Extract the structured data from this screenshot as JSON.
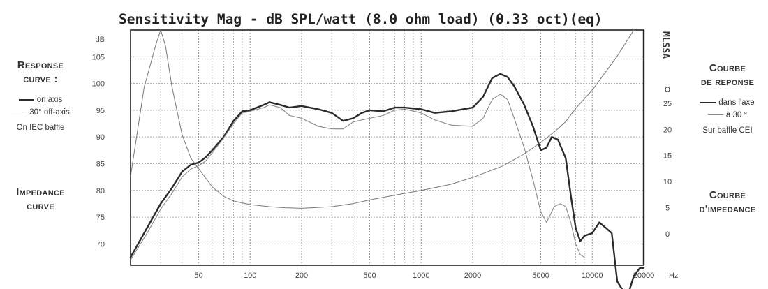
{
  "left_panel": {
    "response_heading_1": "Response",
    "response_heading_2": "curve :",
    "legend_on_axis": "on axis",
    "legend_off_axis": "30° off-axis",
    "baffle_note": "On IEC baffle",
    "impedance_heading_1": "Impedance",
    "impedance_heading_2": "curve"
  },
  "right_panel": {
    "response_heading_1": "Courbe",
    "response_heading_2": "de reponse",
    "legend_on_axis": "dans l'axe",
    "legend_off_axis": "à 30 °",
    "baffle_note": "Sur baffle CEI",
    "impedance_heading_1": "Courbe",
    "impedance_heading_2": "d'impedance"
  },
  "chart_data": {
    "type": "line",
    "title": "Sensitivity Mag - dB SPL/watt (8.0 ohm load) (0.33 oct)(eq)",
    "x_scale": "log",
    "x_range": [
      20,
      20000
    ],
    "x_unit": "Hz",
    "x_tick_labels": [
      50,
      100,
      200,
      500,
      1000,
      2000,
      5000,
      10000,
      20000
    ],
    "y_left": {
      "unit": "dB",
      "range": [
        66,
        110
      ],
      "ticks": [
        70,
        75,
        80,
        85,
        90,
        95,
        100,
        105
      ]
    },
    "y_right": {
      "unit": "Ω",
      "range": [
        -6,
        39
      ],
      "ticks": [
        0,
        5,
        10,
        15,
        20,
        25
      ]
    },
    "right_axis_label": "MLSSA",
    "grid": true,
    "series": [
      {
        "name": "on axis",
        "axis": "left",
        "color": "#2b2b2b",
        "points": [
          [
            20,
            67.5
          ],
          [
            25,
            73
          ],
          [
            30,
            77.5
          ],
          [
            35,
            80.5
          ],
          [
            40,
            83.5
          ],
          [
            45,
            84.8
          ],
          [
            50,
            85.2
          ],
          [
            55,
            86.2
          ],
          [
            60,
            87.5
          ],
          [
            70,
            90
          ],
          [
            80,
            93
          ],
          [
            90,
            94.8
          ],
          [
            100,
            95
          ],
          [
            120,
            96
          ],
          [
            130,
            96.5
          ],
          [
            150,
            96
          ],
          [
            170,
            95.5
          ],
          [
            200,
            95.8
          ],
          [
            250,
            95.2
          ],
          [
            300,
            94.5
          ],
          [
            350,
            93
          ],
          [
            400,
            93.5
          ],
          [
            450,
            94.5
          ],
          [
            500,
            95
          ],
          [
            600,
            94.8
          ],
          [
            700,
            95.5
          ],
          [
            800,
            95.5
          ],
          [
            1000,
            95.2
          ],
          [
            1200,
            94.5
          ],
          [
            1500,
            94.8
          ],
          [
            2000,
            95.5
          ],
          [
            2300,
            97.5
          ],
          [
            2600,
            101
          ],
          [
            2900,
            101.8
          ],
          [
            3200,
            101.2
          ],
          [
            3500,
            99.5
          ],
          [
            4000,
            96
          ],
          [
            4500,
            92
          ],
          [
            5000,
            87.5
          ],
          [
            5400,
            88
          ],
          [
            5800,
            90
          ],
          [
            6300,
            89.5
          ],
          [
            7000,
            86
          ],
          [
            7500,
            79
          ],
          [
            8000,
            73
          ],
          [
            8500,
            70.5
          ],
          [
            9000,
            71.5
          ],
          [
            10000,
            72
          ],
          [
            11000,
            74
          ],
          [
            12000,
            73
          ],
          [
            13000,
            72
          ],
          [
            14000,
            63
          ],
          [
            16000,
            60
          ],
          [
            17500,
            64
          ],
          [
            19000,
            65.5
          ],
          [
            20000,
            65.5
          ]
        ]
      },
      {
        "name": "30° off-axis",
        "axis": "left",
        "color": "#888888",
        "points": [
          [
            20,
            67
          ],
          [
            25,
            72
          ],
          [
            30,
            76.5
          ],
          [
            35,
            79.5
          ],
          [
            40,
            82.5
          ],
          [
            45,
            84
          ],
          [
            50,
            84.6
          ],
          [
            55,
            85.5
          ],
          [
            60,
            87
          ],
          [
            70,
            89.8
          ],
          [
            80,
            92.5
          ],
          [
            90,
            94.5
          ],
          [
            100,
            94.8
          ],
          [
            120,
            95.5
          ],
          [
            130,
            96
          ],
          [
            150,
            95.5
          ],
          [
            170,
            94
          ],
          [
            200,
            93.5
          ],
          [
            250,
            92
          ],
          [
            300,
            91.5
          ],
          [
            350,
            91.5
          ],
          [
            400,
            92.8
          ],
          [
            500,
            93.5
          ],
          [
            600,
            94
          ],
          [
            700,
            95
          ],
          [
            800,
            95.2
          ],
          [
            1000,
            94.5
          ],
          [
            1200,
            93.2
          ],
          [
            1500,
            92.2
          ],
          [
            2000,
            92
          ],
          [
            2300,
            93.5
          ],
          [
            2600,
            97
          ],
          [
            2900,
            98
          ],
          [
            3200,
            97
          ],
          [
            3500,
            93.5
          ],
          [
            4000,
            88
          ],
          [
            4500,
            82
          ],
          [
            5000,
            76
          ],
          [
            5400,
            74
          ],
          [
            6000,
            77
          ],
          [
            6500,
            77.5
          ],
          [
            7000,
            77
          ],
          [
            7500,
            74
          ],
          [
            8000,
            70
          ],
          [
            8500,
            68
          ],
          [
            9000,
            67.5
          ]
        ]
      },
      {
        "name": "impedance",
        "axis": "right",
        "color": "#777777",
        "points": [
          [
            20,
            11
          ],
          [
            24,
            28
          ],
          [
            28,
            36
          ],
          [
            30,
            39
          ],
          [
            32,
            36
          ],
          [
            35,
            28
          ],
          [
            40,
            19
          ],
          [
            45,
            14.5
          ],
          [
            50,
            12.5
          ],
          [
            60,
            9
          ],
          [
            70,
            7.2
          ],
          [
            80,
            6.3
          ],
          [
            100,
            5.6
          ],
          [
            130,
            5.2
          ],
          [
            160,
            5
          ],
          [
            200,
            4.9
          ],
          [
            300,
            5.2
          ],
          [
            400,
            5.8
          ],
          [
            500,
            6.5
          ],
          [
            700,
            7.4
          ],
          [
            1000,
            8.3
          ],
          [
            1500,
            9.5
          ],
          [
            2000,
            10.8
          ],
          [
            3000,
            13
          ],
          [
            4000,
            15.3
          ],
          [
            5000,
            17.5
          ],
          [
            6000,
            19.5
          ],
          [
            7000,
            21.5
          ],
          [
            8000,
            24
          ],
          [
            10000,
            27.5
          ],
          [
            12000,
            31
          ],
          [
            14000,
            34
          ],
          [
            16000,
            37
          ],
          [
            17500,
            39
          ]
        ]
      }
    ]
  }
}
